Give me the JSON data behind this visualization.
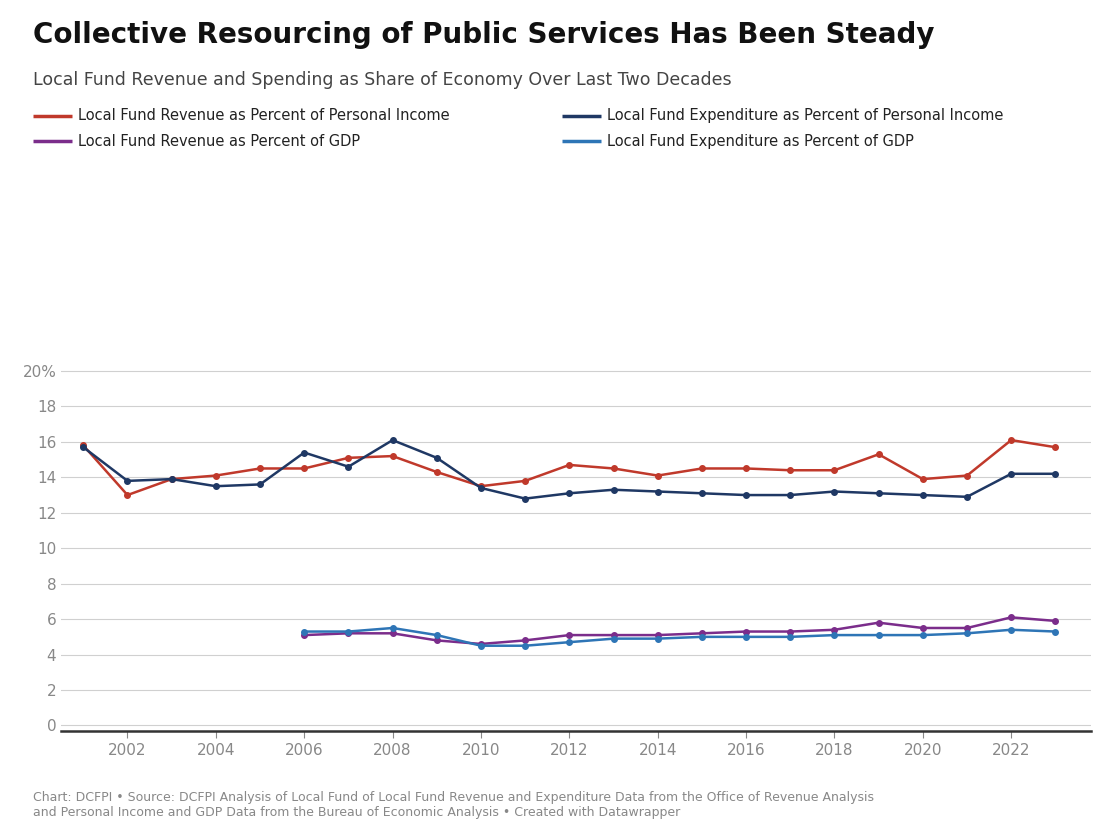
{
  "title": "Collective Resourcing of Public Services Has Been Steady",
  "subtitle": "Local Fund Revenue and Spending as Share of Economy Over Last Two Decades",
  "footer": "Chart: DCFPI • Source: DCFPI Analysis of Local Fund of Local Fund Revenue and Expenditure Data from the Office of Revenue Analysis\nand Personal Income and GDP Data from the Bureau of Economic Analysis • Created with Datawrapper",
  "legend": [
    {
      "label": "Local Fund Revenue as Percent of Personal Income",
      "color": "#c0392b"
    },
    {
      "label": "Local Fund Expenditure as Percent of Personal Income",
      "color": "#1f3864"
    },
    {
      "label": "Local Fund Revenue as Percent of GDP",
      "color": "#7b2d8b"
    },
    {
      "label": "Local Fund Expenditure as Percent of GDP",
      "color": "#2e75b6"
    }
  ],
  "years": [
    2001,
    2002,
    2003,
    2004,
    2005,
    2006,
    2007,
    2008,
    2009,
    2010,
    2011,
    2012,
    2013,
    2014,
    2015,
    2016,
    2017,
    2018,
    2019,
    2020,
    2021,
    2022,
    2023
  ],
  "revenue_personal_income": [
    15.8,
    13.0,
    13.9,
    14.1,
    14.5,
    14.5,
    15.1,
    15.2,
    14.3,
    13.5,
    13.8,
    14.7,
    14.5,
    14.1,
    14.5,
    14.5,
    14.4,
    14.4,
    15.3,
    13.9,
    14.1,
    16.1,
    15.7
  ],
  "expenditure_personal_income": [
    15.7,
    13.8,
    13.9,
    13.5,
    13.6,
    15.4,
    14.6,
    16.1,
    15.1,
    13.4,
    12.8,
    13.1,
    13.3,
    13.2,
    13.1,
    13.0,
    13.0,
    13.2,
    13.1,
    13.0,
    12.9,
    14.2,
    14.2
  ],
  "revenue_gdp": [
    null,
    null,
    null,
    null,
    null,
    5.1,
    5.2,
    5.2,
    4.8,
    4.6,
    4.8,
    5.1,
    5.1,
    5.1,
    5.2,
    5.3,
    5.3,
    5.4,
    5.8,
    5.5,
    5.5,
    6.1,
    5.9
  ],
  "expenditure_gdp": [
    null,
    null,
    null,
    null,
    null,
    5.3,
    5.3,
    5.5,
    5.1,
    4.5,
    4.5,
    4.7,
    4.9,
    4.9,
    5.0,
    5.0,
    5.0,
    5.1,
    5.1,
    5.1,
    5.2,
    5.4,
    5.3
  ],
  "yticks": [
    0,
    2,
    4,
    6,
    8,
    10,
    12,
    14,
    16,
    18,
    20
  ],
  "ylim": [
    -0.3,
    21.5
  ],
  "xlim": [
    2000.5,
    2023.8
  ],
  "xticks": [
    2002,
    2004,
    2006,
    2008,
    2010,
    2012,
    2014,
    2016,
    2018,
    2020,
    2022
  ],
  "background_color": "#ffffff",
  "grid_color": "#d0d0d0",
  "line_color_rev_pi": "#c0392b",
  "line_color_exp_pi": "#1f3864",
  "line_color_rev_gdp": "#7b2d8b",
  "line_color_exp_gdp": "#2e75b6"
}
